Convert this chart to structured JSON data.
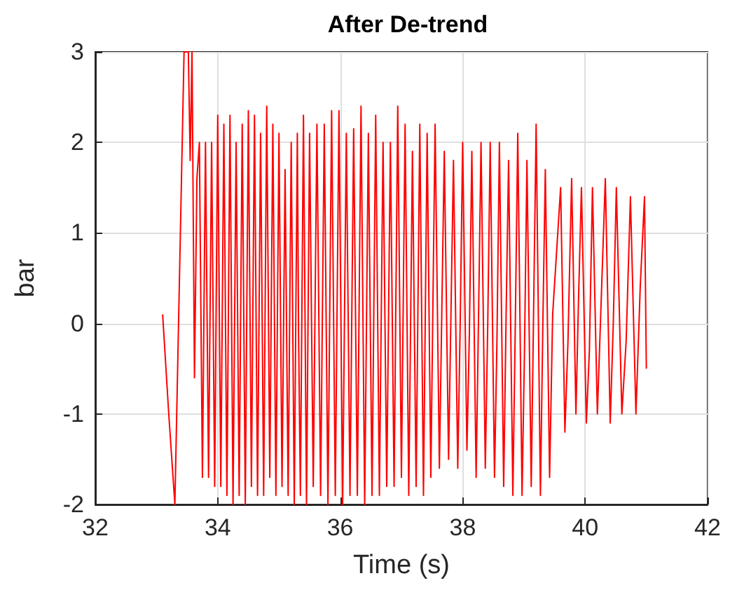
{
  "chart_data": {
    "type": "line",
    "title": "After De-trend",
    "xlabel": "Time (s)",
    "ylabel": "bar",
    "xlim": [
      32,
      42
    ],
    "xticks": [
      32,
      34,
      36,
      38,
      40,
      42
    ],
    "ylim": [
      -2,
      3
    ],
    "yticks": [
      -2,
      -1,
      0,
      1,
      2,
      3
    ],
    "grid": true,
    "marker": "none",
    "line_style": "solid",
    "series": [
      {
        "color": "#ff0000",
        "x": [
          33.1,
          33.2,
          33.3,
          33.45,
          33.52,
          33.55,
          33.58,
          33.62,
          33.66,
          33.7,
          33.75,
          33.8,
          33.85,
          33.9,
          33.95,
          34.0,
          34.05,
          34.1,
          34.15,
          34.2,
          34.25,
          34.3,
          34.35,
          34.4,
          34.45,
          34.5,
          34.55,
          34.6,
          34.65,
          34.7,
          34.75,
          34.8,
          34.85,
          34.9,
          34.95,
          35.0,
          35.05,
          35.1,
          35.15,
          35.2,
          35.25,
          35.3,
          35.32,
          35.35,
          35.4,
          35.45,
          35.5,
          35.56,
          35.62,
          35.68,
          35.74,
          35.8,
          35.86,
          35.92,
          35.98,
          36.04,
          36.1,
          36.16,
          36.22,
          36.28,
          36.34,
          36.4,
          36.46,
          36.52,
          36.58,
          36.64,
          36.7,
          36.76,
          36.82,
          36.88,
          36.94,
          37.0,
          37.06,
          37.12,
          37.18,
          37.24,
          37.3,
          37.36,
          37.42,
          37.48,
          37.55,
          37.62,
          37.7,
          37.77,
          37.85,
          37.92,
          37.96,
          38.0,
          38.07,
          38.11,
          38.15,
          38.22,
          38.26,
          38.3,
          38.37,
          38.41,
          38.45,
          38.52,
          38.56,
          38.6,
          38.67,
          38.71,
          38.75,
          38.82,
          38.86,
          38.9,
          38.97,
          39.01,
          39.05,
          39.12,
          39.16,
          39.2,
          39.27,
          39.31,
          39.35,
          39.42,
          39.47,
          39.6,
          39.67,
          39.72,
          39.78,
          39.85,
          39.89,
          39.94,
          40.02,
          40.07,
          40.12,
          40.2,
          40.26,
          40.33,
          40.41,
          40.46,
          40.51,
          40.6,
          40.67,
          40.74,
          40.83,
          40.9,
          40.97,
          41.0
        ],
        "values": [
          0.1,
          -1.0,
          -2,
          3,
          3,
          1.8,
          3,
          -0.6,
          1.6,
          2.0,
          -1.7,
          2.0,
          -1.7,
          2.0,
          -1.8,
          2.3,
          -1.8,
          2.2,
          -1.9,
          2.3,
          -2.0,
          2.0,
          -1.9,
          2.2,
          -2.0,
          2.35,
          -1.8,
          2.3,
          -1.9,
          2.1,
          -1.9,
          2.4,
          -1.7,
          2.2,
          -1.9,
          2.1,
          -1.8,
          1.7,
          -1.9,
          2.0,
          -2.0,
          2.1,
          -0.1,
          -1.9,
          2.3,
          -2.0,
          2.1,
          -1.8,
          2.2,
          -1.9,
          2.2,
          -2.0,
          2.35,
          -1.9,
          2.35,
          -2.0,
          2.1,
          -1.9,
          2.15,
          -1.9,
          2.4,
          -2.0,
          2.1,
          -1.9,
          2.3,
          -1.9,
          2.0,
          -1.8,
          2.0,
          -1.8,
          2.4,
          -1.7,
          2.2,
          -1.9,
          1.9,
          -1.8,
          2.2,
          -1.9,
          2.1,
          -1.7,
          2.2,
          -1.6,
          1.9,
          -1.5,
          1.8,
          -1.6,
          0.0,
          2.0,
          -1.4,
          -0.1,
          1.9,
          -1.7,
          0.1,
          2.0,
          -1.6,
          0.0,
          2.0,
          -1.7,
          -0.2,
          2.0,
          -1.8,
          0.1,
          1.8,
          -1.9,
          0.0,
          2.1,
          -1.9,
          -0.3,
          1.8,
          -1.8,
          0.2,
          2.2,
          -1.9,
          0.0,
          1.7,
          -1.7,
          0.1,
          1.5,
          -1.2,
          -0.2,
          1.6,
          -1.0,
          0.2,
          1.5,
          -1.1,
          -0.3,
          1.5,
          -1.0,
          0.2,
          1.6,
          -1.1,
          0.0,
          1.5,
          -1.0,
          -0.2,
          1.4,
          -1.0,
          0.4,
          1.4,
          -0.5
        ]
      }
    ]
  }
}
